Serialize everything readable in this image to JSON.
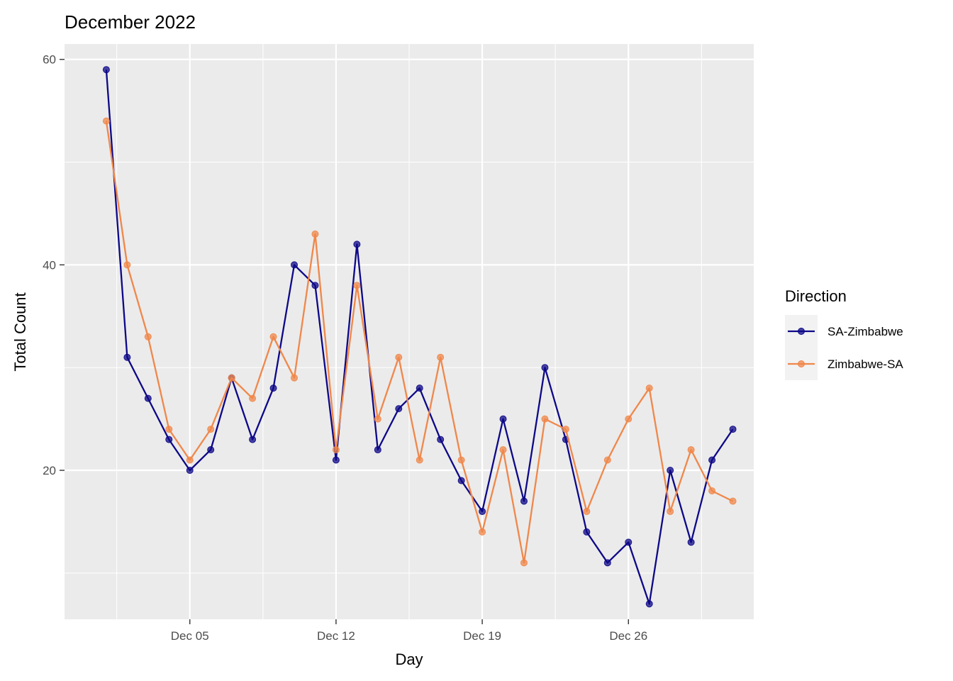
{
  "chart_data": {
    "type": "line",
    "title": "December 2022",
    "xlabel": "Day",
    "ylabel": "Total Count",
    "x_ticks": [
      {
        "date": "2022-12-05",
        "label": "Dec 05"
      },
      {
        "date": "2022-12-12",
        "label": "Dec 12"
      },
      {
        "date": "2022-12-19",
        "label": "Dec 19"
      },
      {
        "date": "2022-12-26",
        "label": "Dec 26"
      }
    ],
    "y_ticks": [
      20,
      40,
      60
    ],
    "xlim": [
      "2022-11-29",
      "2023-01-01"
    ],
    "ylim": [
      5.5,
      61.5
    ],
    "grid": true,
    "legend": {
      "title": "Direction",
      "position": "right"
    },
    "x": [
      "2022-12-01",
      "2022-12-02",
      "2022-12-03",
      "2022-12-04",
      "2022-12-05",
      "2022-12-06",
      "2022-12-07",
      "2022-12-08",
      "2022-12-09",
      "2022-12-10",
      "2022-12-11",
      "2022-12-12",
      "2022-12-13",
      "2022-12-14",
      "2022-12-15",
      "2022-12-16",
      "2022-12-17",
      "2022-12-18",
      "2022-12-19",
      "2022-12-20",
      "2022-12-21",
      "2022-12-22",
      "2022-12-23",
      "2022-12-24",
      "2022-12-25",
      "2022-12-26",
      "2022-12-27",
      "2022-12-28",
      "2022-12-29",
      "2022-12-30",
      "2022-12-31"
    ],
    "series": [
      {
        "name": "SA-Zimbabwe",
        "color": "#0d0887",
        "values": [
          59,
          31,
          27,
          23,
          20,
          22,
          29,
          23,
          28,
          40,
          38,
          21,
          42,
          22,
          26,
          28,
          23,
          19,
          16,
          25,
          17,
          30,
          23,
          14,
          11,
          13,
          7,
          20,
          13,
          21,
          24
        ]
      },
      {
        "name": "Zimbabwe-SA",
        "color": "#f0874a",
        "values": [
          54,
          40,
          33,
          24,
          21,
          24,
          29,
          27,
          33,
          29,
          43,
          22,
          38,
          25,
          31,
          21,
          31,
          21,
          14,
          22,
          11,
          25,
          24,
          16,
          21,
          25,
          28,
          16,
          22,
          18,
          17
        ]
      }
    ]
  }
}
